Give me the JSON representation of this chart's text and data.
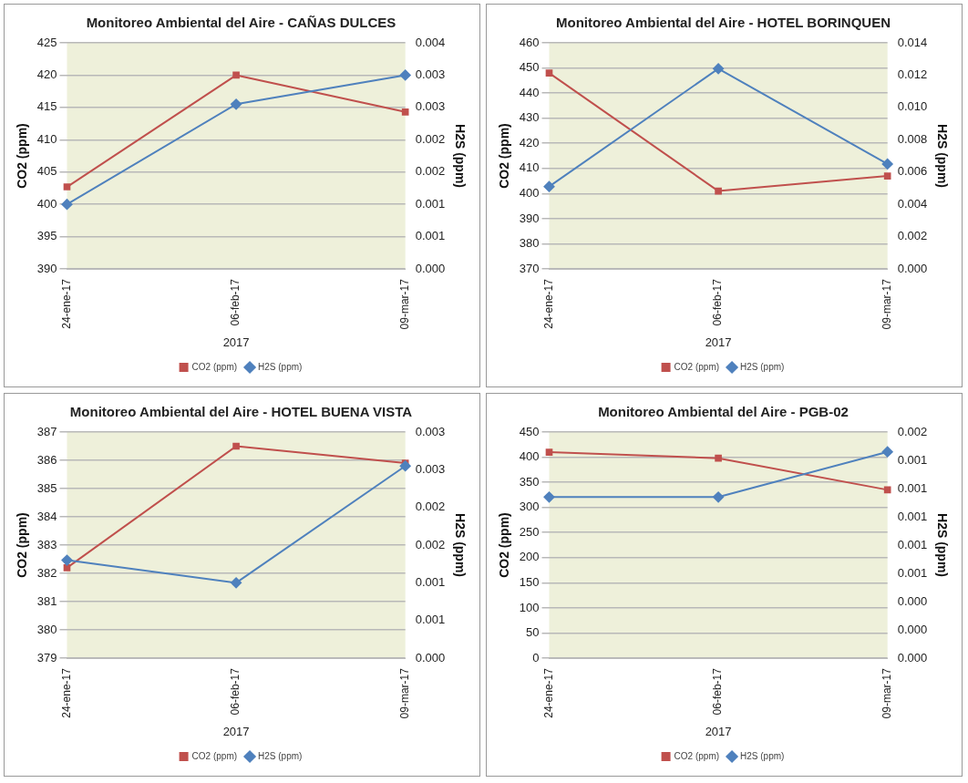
{
  "chart_data": [
    {
      "type": "line",
      "title": "Monitoreo Ambiental del Aire - CAÑAS DULCES",
      "xlabel": "2017",
      "ylabel": "CO2 (ppm)",
      "y2label": "H2S (ppm)",
      "categories": [
        "24-ene-17",
        "06-feb-17",
        "09-mar-17"
      ],
      "series": [
        {
          "name": "CO2 (ppm)",
          "color": "#c0504d",
          "marker": "square",
          "values": [
            402.7,
            420,
            414.3
          ]
        },
        {
          "name": "H2S (ppm)",
          "color": "#4f81bd",
          "marker": "diamond",
          "axis": "y2",
          "values": [
            0.001,
            0.00255,
            0.003
          ]
        }
      ],
      "ylim": [
        390,
        425
      ],
      "yticks": [
        390,
        395,
        400,
        405,
        410,
        415,
        420,
        425
      ],
      "y2lim": [
        0,
        0.0035
      ],
      "y2ticks": [
        {
          "value": 0,
          "label": "0.000"
        },
        {
          "value": 0.0005,
          "label": "0.001"
        },
        {
          "value": 0.001,
          "label": "0.001"
        },
        {
          "value": 0.0015,
          "label": "0.002"
        },
        {
          "value": 0.002,
          "label": "0.002"
        },
        {
          "value": 0.0025,
          "label": "0.003"
        },
        {
          "value": 0.003,
          "label": "0.003"
        },
        {
          "value": 0.0035,
          "label": "0.004"
        }
      ],
      "grid": "y",
      "legend": "bottom",
      "line_style": "solid"
    },
    {
      "type": "line",
      "title": "Monitoreo Ambiental del Aire - HOTEL BORINQUEN",
      "xlabel": "2017",
      "ylabel": "CO2 (ppm)",
      "y2label": "H2S (ppm)",
      "categories": [
        "24-ene-17",
        "06-feb-17",
        "09-mar-17"
      ],
      "series": [
        {
          "name": "CO2 (ppm)",
          "color": "#c0504d",
          "marker": "square",
          "values": [
            448,
            401,
            407
          ]
        },
        {
          "name": "H2S (ppm)",
          "color": "#4f81bd",
          "marker": "diamond",
          "axis": "y2",
          "values": [
            0.0051,
            0.0124,
            0.0065
          ]
        }
      ],
      "ylim": [
        370,
        460
      ],
      "yticks": [
        370,
        380,
        390,
        400,
        410,
        420,
        430,
        440,
        450,
        460
      ],
      "y2lim": [
        0,
        0.014
      ],
      "y2ticks": [
        {
          "value": 0,
          "label": "0.000"
        },
        {
          "value": 0.002,
          "label": "0.002"
        },
        {
          "value": 0.004,
          "label": "0.004"
        },
        {
          "value": 0.006,
          "label": "0.006"
        },
        {
          "value": 0.008,
          "label": "0.008"
        },
        {
          "value": 0.01,
          "label": "0.010"
        },
        {
          "value": 0.012,
          "label": "0.012"
        },
        {
          "value": 0.014,
          "label": "0.014"
        }
      ],
      "grid": "y",
      "legend": "bottom",
      "line_style": "solid"
    },
    {
      "type": "line",
      "title": "Monitoreo Ambiental del Aire - HOTEL BUENA VISTA",
      "xlabel": "2017",
      "ylabel": "CO2 (ppm)",
      "y2label": "H2S (ppm)",
      "categories": [
        "24-ene-17",
        "06-feb-17",
        "09-mar-17"
      ],
      "series": [
        {
          "name": "CO2 (ppm)",
          "color": "#c0504d",
          "marker": "square",
          "values": [
            382.2,
            386.5,
            385.9
          ]
        },
        {
          "name": "H2S (ppm)",
          "color": "#4f81bd",
          "marker": "diamond",
          "axis": "y2",
          "values": [
            0.0013,
            0.001,
            0.00255
          ]
        }
      ],
      "ylim": [
        379,
        387
      ],
      "yticks": [
        379,
        380,
        381,
        382,
        383,
        384,
        385,
        386,
        387
      ],
      "y2lim": [
        0,
        0.003
      ],
      "y2ticks": [
        {
          "value": 0,
          "label": "0.000"
        },
        {
          "value": 0.0005,
          "label": "0.001"
        },
        {
          "value": 0.001,
          "label": "0.001"
        },
        {
          "value": 0.0015,
          "label": "0.002"
        },
        {
          "value": 0.002,
          "label": "0.002"
        },
        {
          "value": 0.0025,
          "label": "0.003"
        },
        {
          "value": 0.003,
          "label": "0.003"
        }
      ],
      "grid": "y",
      "legend": "bottom",
      "line_style": "solid"
    },
    {
      "type": "line",
      "title": "Monitoreo Ambiental del Aire - PGB-02",
      "xlabel": "2017",
      "ylabel": "CO2 (ppm)",
      "y2label": "H2S (ppm)",
      "categories": [
        "24-ene-17",
        "06-feb-17",
        "09-mar-17"
      ],
      "series": [
        {
          "name": "CO2 (ppm)",
          "color": "#c0504d",
          "marker": "square",
          "values": [
            410,
            398,
            335
          ]
        },
        {
          "name": "H2S (ppm)",
          "color": "#4f81bd",
          "marker": "diamond",
          "axis": "y2",
          "values": [
            0.00114,
            0.00114,
            0.00146
          ]
        }
      ],
      "ylim": [
        0,
        450
      ],
      "yticks": [
        0,
        50,
        100,
        150,
        200,
        250,
        300,
        350,
        400,
        450
      ],
      "y2lim": [
        0,
        0.0016
      ],
      "y2ticks": [
        {
          "value": 0,
          "label": "0.000"
        },
        {
          "value": 0.0002,
          "label": "0.000"
        },
        {
          "value": 0.0004,
          "label": "0.000"
        },
        {
          "value": 0.0006,
          "label": "0.001"
        },
        {
          "value": 0.0008,
          "label": "0.001"
        },
        {
          "value": 0.001,
          "label": "0.001"
        },
        {
          "value": 0.0012,
          "label": "0.001"
        },
        {
          "value": 0.0014,
          "label": "0.001"
        },
        {
          "value": 0.0016,
          "label": "0.002"
        }
      ],
      "grid": "y",
      "legend": "bottom",
      "line_style": "solid"
    }
  ]
}
